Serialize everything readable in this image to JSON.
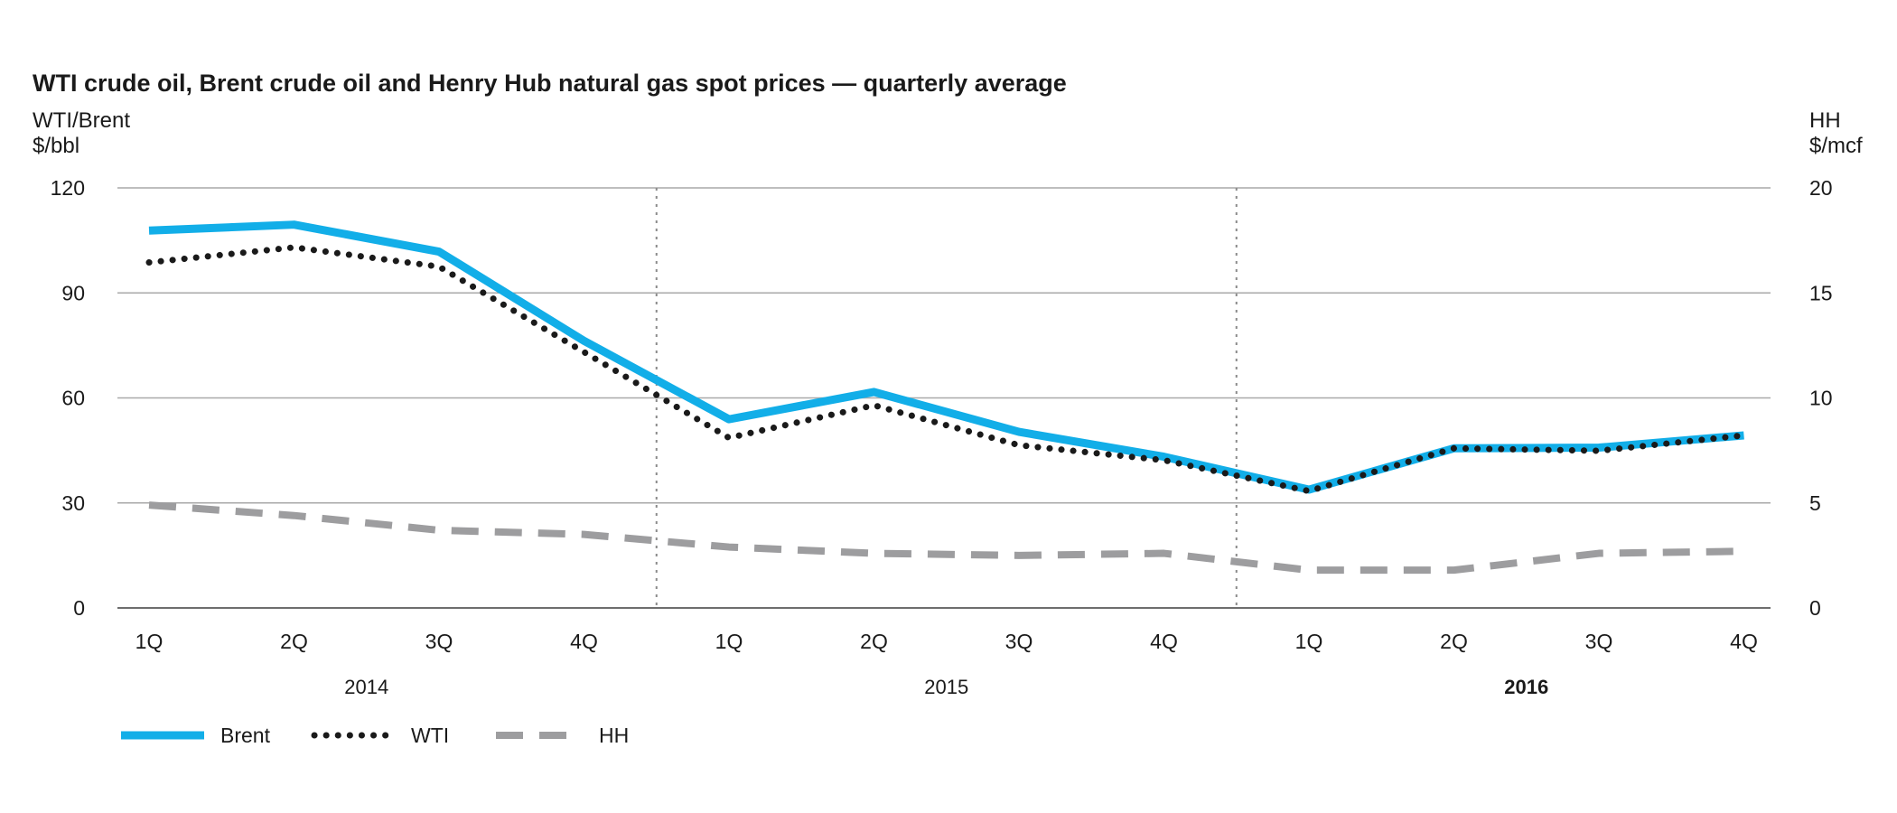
{
  "chart_data": {
    "type": "line",
    "title": "WTI crude oil, Brent crude oil and Henry Hub natural gas spot prices — quarterly average",
    "left_axis_label": [
      "WTI/Brent",
      "$/bbl"
    ],
    "right_axis_label": [
      "HH",
      "$/mcf"
    ],
    "left_ylim": [
      0,
      120
    ],
    "right_ylim": [
      0,
      20
    ],
    "left_ticks": [
      "120",
      "90",
      "60",
      "30",
      "0"
    ],
    "right_ticks": [
      "20",
      "15",
      "10",
      "5",
      "0"
    ],
    "left_tick_values": [
      120,
      90,
      60,
      30,
      0
    ],
    "right_tick_values": [
      20,
      15,
      10,
      5,
      0
    ],
    "categories": [
      "1Q",
      "2Q",
      "3Q",
      "4Q",
      "1Q",
      "2Q",
      "3Q",
      "4Q",
      "1Q",
      "2Q",
      "3Q",
      "4Q"
    ],
    "years": [
      {
        "label": "2014",
        "bold": false
      },
      {
        "label": "2015",
        "bold": false
      },
      {
        "label": "2016",
        "bold": true
      }
    ],
    "series": [
      {
        "name": "Brent",
        "axis": "left",
        "color": "#12aee8",
        "style": "solid",
        "values": [
          107.8,
          109.5,
          101.8,
          76.3,
          53.9,
          61.7,
          50.3,
          43.2,
          33.8,
          45.6,
          45.8,
          49.3
        ]
      },
      {
        "name": "WTI",
        "axis": "left",
        "color": "#1a1a1a",
        "style": "dotted",
        "values": [
          98.7,
          103.0,
          97.5,
          73.1,
          48.6,
          57.9,
          46.5,
          42.2,
          33.4,
          45.6,
          44.9,
          49.3
        ]
      },
      {
        "name": "HH",
        "axis": "right",
        "color": "#9d9d9f",
        "style": "dashed",
        "values": [
          4.9,
          4.4,
          3.7,
          3.5,
          2.9,
          2.6,
          2.5,
          2.6,
          1.8,
          1.8,
          2.6,
          2.7
        ]
      }
    ],
    "legend": [
      "Brent",
      "WTI",
      "HH"
    ],
    "legend_position": "bottom-left"
  }
}
